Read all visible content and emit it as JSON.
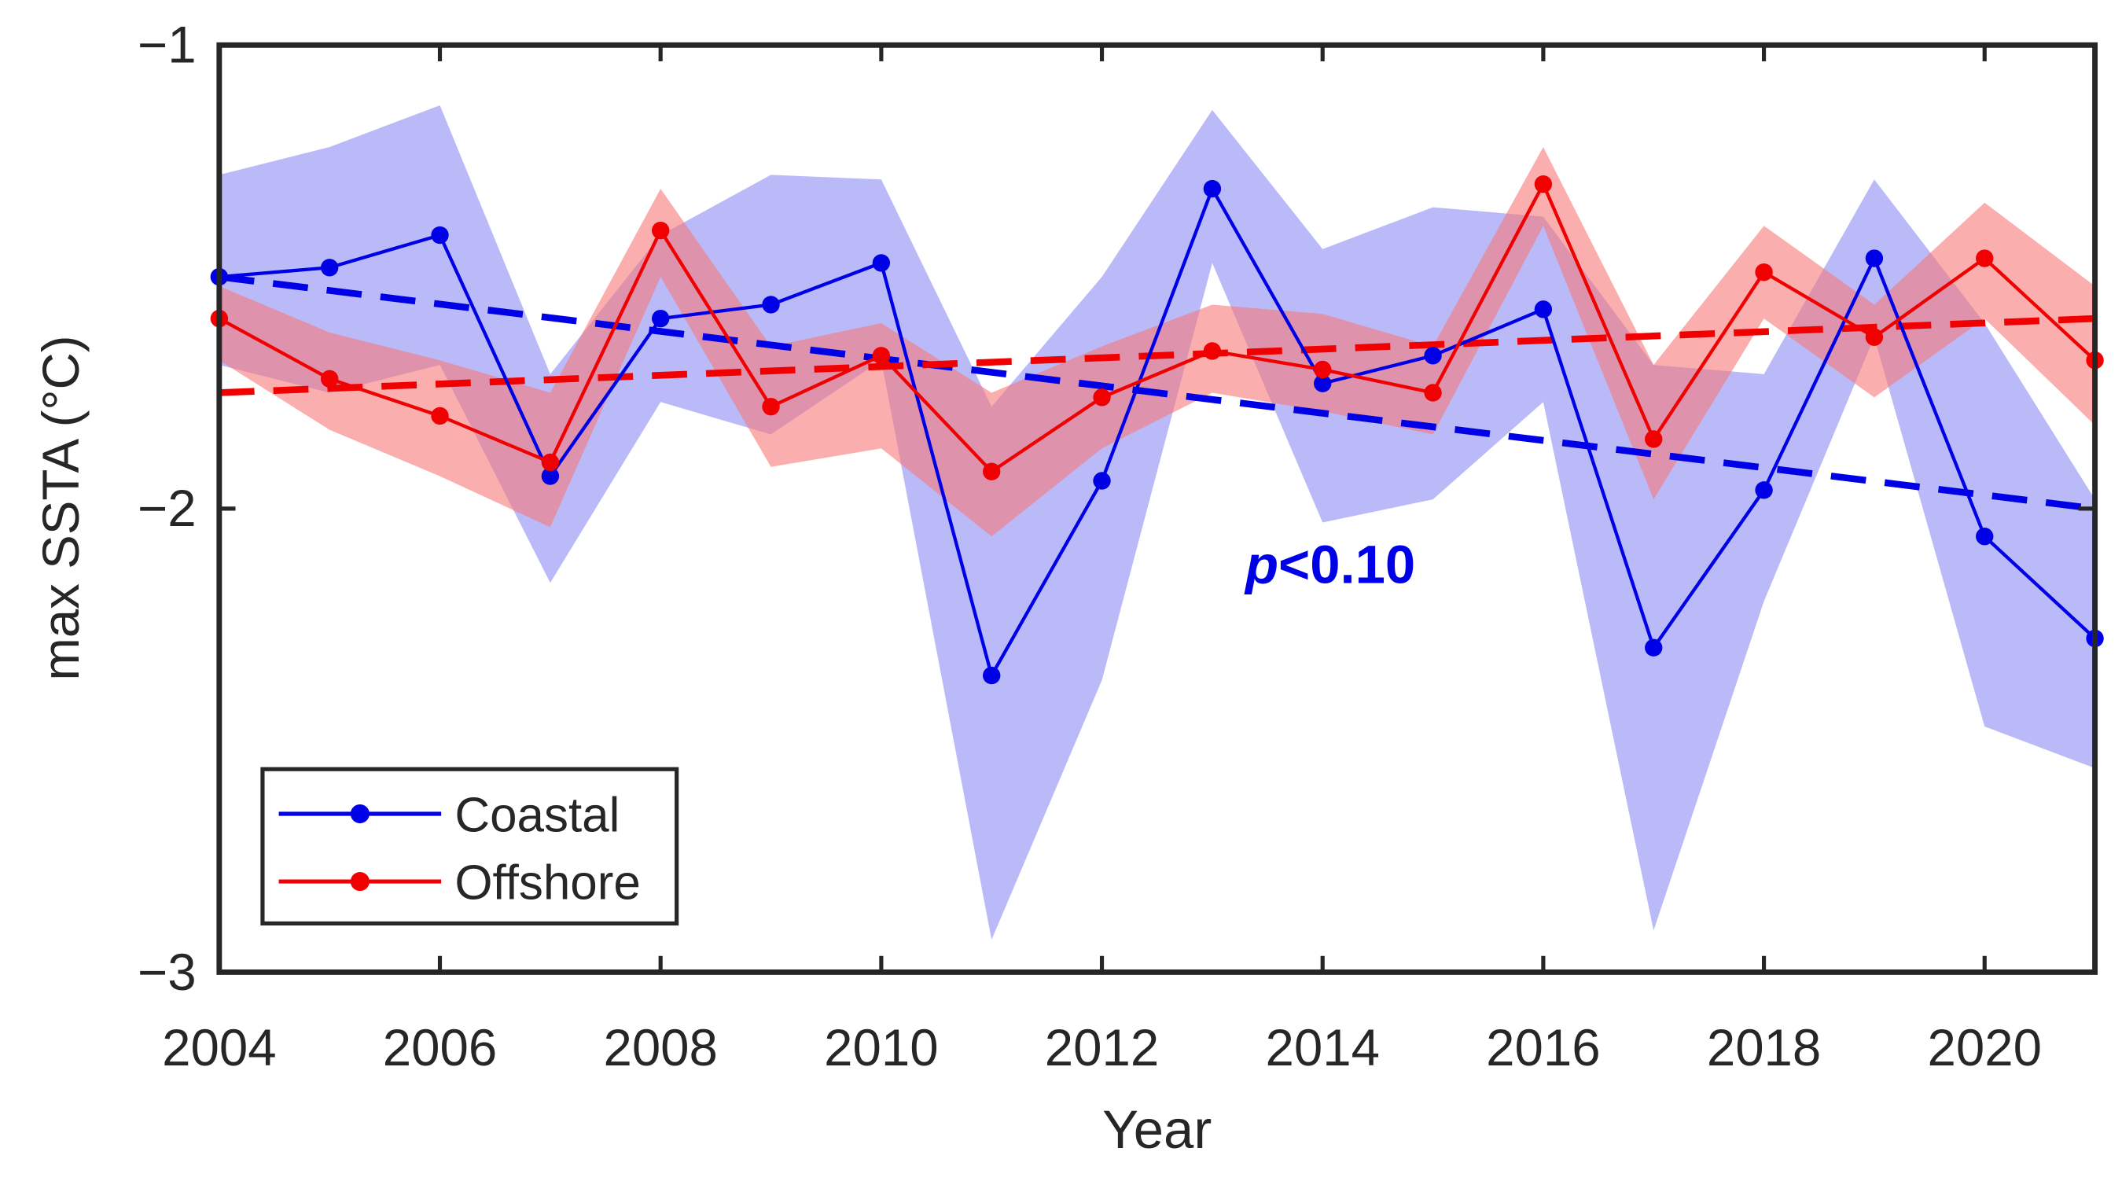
{
  "chart_data": {
    "type": "line",
    "title": "",
    "xlabel": "Year",
    "ylabel": "max SSTA (°C)",
    "xlim": [
      2004,
      2021
    ],
    "ylim": [
      -3,
      -1
    ],
    "xticks": [
      2004,
      2006,
      2008,
      2010,
      2012,
      2014,
      2016,
      2018,
      2020
    ],
    "xtick_labels": [
      "2004",
      "2006",
      "2008",
      "2010",
      "2012",
      "2014",
      "2016",
      "2018",
      "2020"
    ],
    "yticks": [
      -3,
      -2,
      -1
    ],
    "ytick_labels": [
      "−3",
      "−2",
      "−1"
    ],
    "grid": false,
    "legend_position": "bottom-left",
    "x": [
      2004,
      2005,
      2006,
      2007,
      2008,
      2009,
      2010,
      2011,
      2012,
      2013,
      2014,
      2015,
      2016,
      2017,
      2018,
      2019,
      2020,
      2021
    ],
    "series": [
      {
        "name": "Coastal",
        "color": "#0000e6",
        "band_color": "#8c8cf5",
        "values": [
          -1.5,
          -1.48,
          -1.41,
          -1.93,
          -1.59,
          -1.56,
          -1.47,
          -2.36,
          -1.94,
          -1.31,
          -1.73,
          -1.67,
          -1.57,
          -2.3,
          -1.96,
          -1.46,
          -2.06,
          -2.28
        ],
        "upper": [
          -1.28,
          -1.22,
          -1.13,
          -1.71,
          -1.41,
          -1.28,
          -1.29,
          -1.78,
          -1.5,
          -1.14,
          -1.44,
          -1.35,
          -1.37,
          -1.69,
          -1.71,
          -1.29,
          -1.6,
          -1.98
        ],
        "lower": [
          -1.69,
          -1.75,
          -1.69,
          -2.16,
          -1.77,
          -1.84,
          -1.68,
          -2.93,
          -2.37,
          -1.47,
          -2.03,
          -1.98,
          -1.77,
          -2.91,
          -2.2,
          -1.63,
          -2.47,
          -2.56
        ],
        "trend": {
          "start": -1.5,
          "end": -2.0
        }
      },
      {
        "name": "Offshore",
        "color": "#f00000",
        "band_color": "#f87878",
        "values": [
          -1.59,
          -1.72,
          -1.8,
          -1.9,
          -1.4,
          -1.78,
          -1.67,
          -1.92,
          -1.76,
          -1.66,
          -1.7,
          -1.75,
          -1.3,
          -1.85,
          -1.49,
          -1.63,
          -1.46,
          -1.68
        ],
        "upper": [
          -1.52,
          -1.62,
          -1.68,
          -1.75,
          -1.31,
          -1.65,
          -1.6,
          -1.75,
          -1.65,
          -1.56,
          -1.58,
          -1.65,
          -1.22,
          -1.69,
          -1.39,
          -1.56,
          -1.34,
          -1.52
        ],
        "lower": [
          -1.68,
          -1.83,
          -1.93,
          -2.04,
          -1.5,
          -1.91,
          -1.87,
          -2.06,
          -1.87,
          -1.75,
          -1.79,
          -1.84,
          -1.39,
          -1.98,
          -1.59,
          -1.76,
          -1.59,
          -1.82
        ],
        "trend": {
          "start": -1.75,
          "end": -1.59
        }
      }
    ],
    "annotations": [
      {
        "p_symbol": "p",
        "text": "<0.10",
        "color": "#0000e6",
        "x": 2013.3,
        "y": -2.12
      }
    ]
  }
}
